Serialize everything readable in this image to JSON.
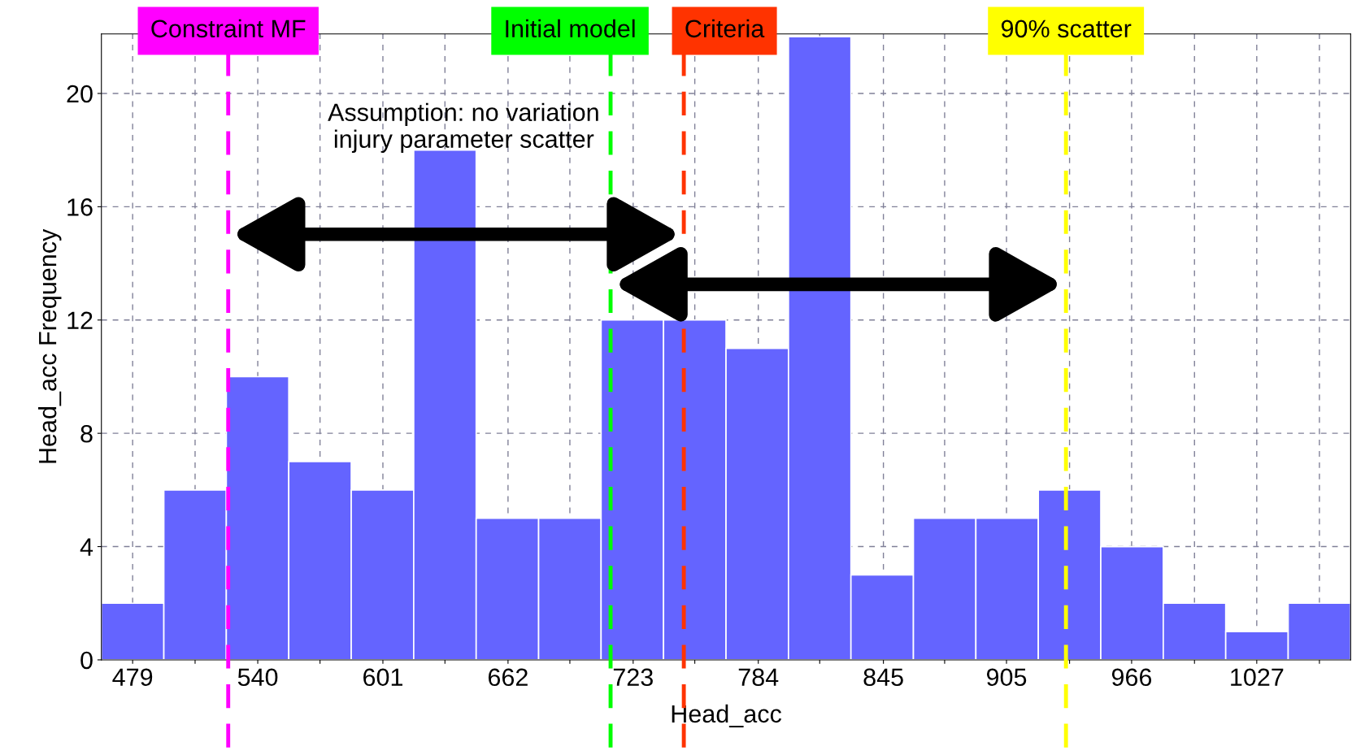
{
  "chart_data": {
    "type": "histogram",
    "xlabel": "Head_acc",
    "ylabel": "Head_acc Frequency",
    "bins": [
      463.775,
      494.225,
      524.675,
      555.125,
      585.575,
      616.025,
      646.475,
      676.925,
      707.375,
      737.825,
      768.275,
      798.725,
      829.175,
      859.625,
      890.075,
      920.525,
      950.975,
      981.425,
      1011.875,
      1042.325,
      1072.775
    ],
    "values": [
      2,
      6,
      10,
      7,
      6,
      18,
      5,
      5,
      12,
      12,
      11,
      22,
      3,
      5,
      5,
      6,
      4,
      2,
      1,
      2
    ],
    "color": "#6464ff",
    "xlim": [
      463.775,
      1072.775
    ],
    "xticks": [
      479,
      {
        "value": 509.45,
        "label": null
      },
      540,
      {
        "value": 570.35,
        "label": null
      },
      601,
      {
        "value": 631.25,
        "label": null
      },
      662,
      {
        "value": 692.15,
        "label": null
      },
      723,
      {
        "value": 753.05,
        "label": null
      },
      784,
      {
        "value": 813.95,
        "label": null
      },
      845,
      {
        "value": 874.85,
        "label": null
      },
      905,
      {
        "value": 935.75,
        "label": null
      },
      966,
      {
        "value": 996.65,
        "label": null
      },
      1027,
      {
        "value": 1057.55,
        "label": null
      }
    ],
    "ylim": [
      0,
      22.1
    ],
    "yticks": [
      0,
      4,
      8,
      12,
      16,
      20
    ],
    "grid": true,
    "ref_lines": [
      {
        "axis": "x",
        "value": 525.6,
        "label": "Constraint MF",
        "color": "#ff00ff",
        "line_style": "dashed"
      },
      {
        "axis": "x",
        "value": 712,
        "label": "Initial model",
        "color": "#00ff00",
        "line_style": "dashed"
      },
      {
        "axis": "x",
        "value": 747.7,
        "label": "Criteria",
        "color": "#ff3300",
        "line_style": "dashed"
      },
      {
        "axis": "x",
        "value": 934,
        "label": "90% scatter",
        "color": "#ffff00",
        "line_style": "dashed"
      }
    ],
    "annotations": [
      "Assumption: no variation\ninjury parameter scatter"
    ]
  }
}
